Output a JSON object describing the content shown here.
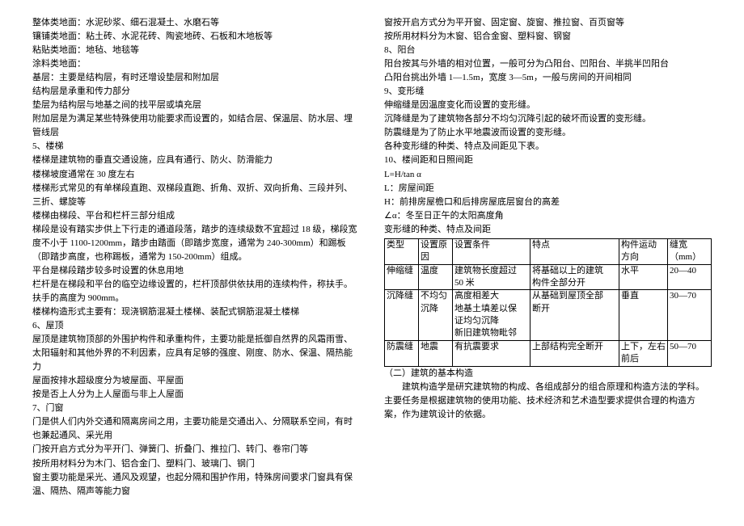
{
  "lines": [
    "整体类地面：水泥砂浆、细石混凝土、水磨石等",
    "镶铺类地面：粘土砖、水泥花砖、陶瓷地砖、石板和木地板等",
    "粘贴类地面：地毡、地毯等",
    "涂料类地面：",
    "基层：主要是结构层，有时还增设垫层和附加层",
    "结构层是承重和传力部分",
    "垫层为结构层与地基之间的找平层或填充层",
    "附加层是为满足某些特殊使用功能要求而设置的，如结合层、保温层、防水层、埋管线层",
    "5、楼梯",
    "楼梯是建筑物的垂直交通设施，应具有通行、防火、防滑能力",
    "楼梯坡度通常在 30 度左右",
    "楼梯形式常见的有单梯段直跑、双梯段直跑、折角、双折、双向折角、三段并列、三折、螺旋等",
    "楼梯由梯段、平台和栏杆三部分组成",
    "梯段是设有踏实步供上下行走的通道段落，踏步的连续级数不宜超过 18 级，梯段宽度不小于 1100-1200mm，踏步由踏面（即踏步宽度，通常为 240-300mm）和踢板（即踏步高度，也称踢板，通常为 150-200mm）组成。",
    "平台是梯段踏步较多时设置的休息用地",
    "栏杆是在梯段和平台的临空边缘设置的，栏杆顶部供依扶用的连续构件，称扶手。扶手的高度为 900mm。",
    "楼梯构造形式主要有：现浇钢筋混凝土楼梯、装配式钢筋混凝土楼梯",
    "6、屋顶",
    "屋顶是建筑物顶部的外围护构件和承重构件，主要功能是抵御自然界的风霜雨雪、太阳辐射和其他外界的不利因素，应具有足够的强度、刚度、防水、保温、隔热能力",
    "屋面按排水超级度分为坡屋面、平屋面",
    "按是否上人分为上人屋面与非上人屋面",
    "7、门窗",
    "门是供人们内外交通和隔离房间之用，主要功能是交通出入、分隔联系空间，有时也兼起通风、采光用",
    "门按开启方式分为平开门、弹簧门、折叠门、推拉门、转门、卷帘门等",
    "按所用材料分为木门、铝合金门、塑料门、玻璃门、钢门",
    "窗主要功能是采光、通风及观望，也起分隔和围护作用，特殊房间要求门窗具有保温、隔热、隔声等能力窗",
    "窗按开启方式分为平开窗、固定窗、旋窗、推拉窗、百页窗等",
    "按所用材料分为木窗、铝合金窗、塑料窗、钢窗",
    "8、阳台",
    "阳台按其与外墙的相对位置，一般可分为凸阳台、凹阳台、半挑半凹阳台",
    "凸阳台挑出外墙 1—1.5m，宽度 3—5m，一般与房间的开间相同",
    "9、变形缝",
    "伸缩缝是因温度变化而设置的变形缝。",
    "沉降缝是为了建筑物各部分不均匀沉降引起的破坏而设置的变形缝。",
    "防震缝是为了防止水平地震波而设置的变形缝。",
    "各种变形缝的种类、特点及间距见下表。",
    "10、楼间距和日照间距",
    "L=H/tan α",
    "L：房屋间距",
    "H：前排房屋檐口和后排房屋底层窗台的高差",
    "∠α：冬至日正午的太阳高度角",
    "变形缝的种类、特点及间距"
  ],
  "table": {
    "headers": [
      "类型",
      "设置原\n因",
      "设置条件",
      "特点",
      "构件运动\n方向",
      "缝宽（mm）"
    ],
    "rows": [
      [
        "伸缩缝",
        "温度",
        "建筑物长度超过\n50 米",
        "将基础以上的建筑\n构件全部分开",
        "水平",
        "20—40"
      ],
      [
        "沉降缝",
        "不均匀\n沉降",
        "高度相差大\n地基土填差以保\n证均匀沉降\n新旧建筑物毗邻",
        "从基础到屋顶全部\n断开",
        "垂直",
        "30—70"
      ],
      [
        "防震缝",
        "地震",
        "有抗震要求",
        "上部结构完全断开",
        "上下，左右\n前后",
        "50—70"
      ]
    ],
    "colWidths": [
      "42px",
      "42px",
      "96px",
      "110px",
      "60px",
      "54px"
    ]
  },
  "after": [
    "（二）建筑的基本构造",
    "建筑构造学是研究建筑物的构成、各组成部分的组合原理和构造方法的学科。主要任务是根据建筑物的使用功能、技术经济和艺术造型要求提供合理的构造方案，作为建筑设计的依据。"
  ],
  "indents": {
    "after0": false,
    "after1": true
  }
}
